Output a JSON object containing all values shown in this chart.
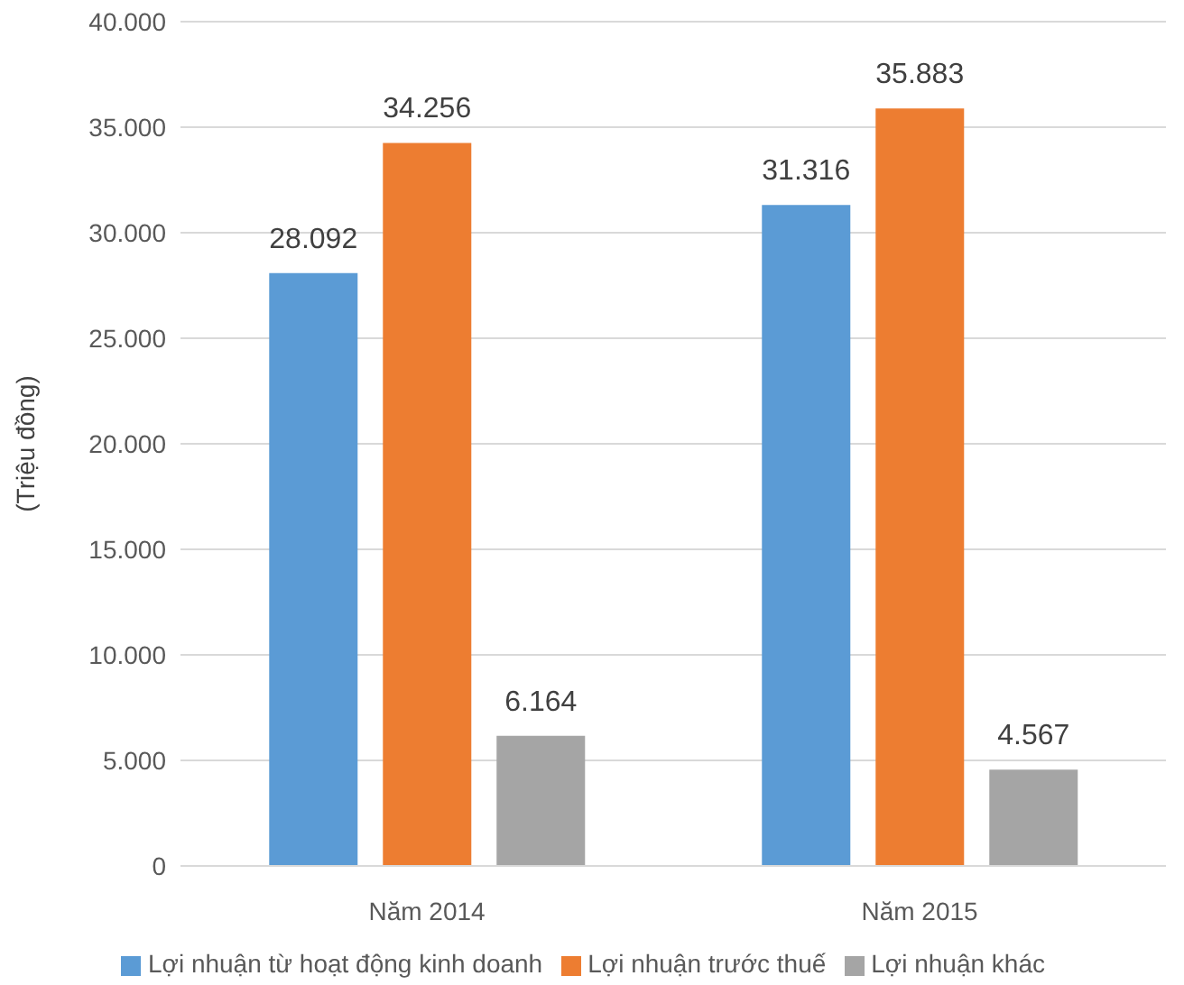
{
  "chart_data": {
    "type": "bar",
    "ylabel": "(Triệu đồng)",
    "categories": [
      "Năm 2014",
      "Năm 2015"
    ],
    "series": [
      {
        "name": "Lợi nhuận từ hoạt động kinh doanh",
        "color": "#5b9bd5",
        "values": [
          28092,
          31316
        ],
        "value_labels": [
          "28.092",
          "31.316"
        ]
      },
      {
        "name": "Lợi nhuận trước thuế",
        "color": "#ed7d31",
        "values": [
          34256,
          35883
        ],
        "value_labels": [
          "34.256",
          "35.883"
        ]
      },
      {
        "name": "Lợi nhuận khác",
        "color": "#a5a5a5",
        "values": [
          6164,
          4567
        ],
        "value_labels": [
          "6.164",
          "4.567"
        ]
      }
    ],
    "ylim": [
      0,
      40000
    ],
    "yticks": [
      0,
      {
        "value": 5000,
        "label": "5.000"
      },
      {
        "value": 10000,
        "label": "10.000"
      },
      {
        "value": 15000,
        "label": "15.000"
      },
      {
        "value": 20000,
        "label": "20.000"
      },
      {
        "value": 25000,
        "label": "25.000"
      },
      {
        "value": 30000,
        "label": "30.000"
      },
      {
        "value": 35000,
        "label": "35.000"
      },
      {
        "value": 40000,
        "label": "40.000"
      }
    ],
    "grid": "y",
    "legend": "bottom"
  }
}
